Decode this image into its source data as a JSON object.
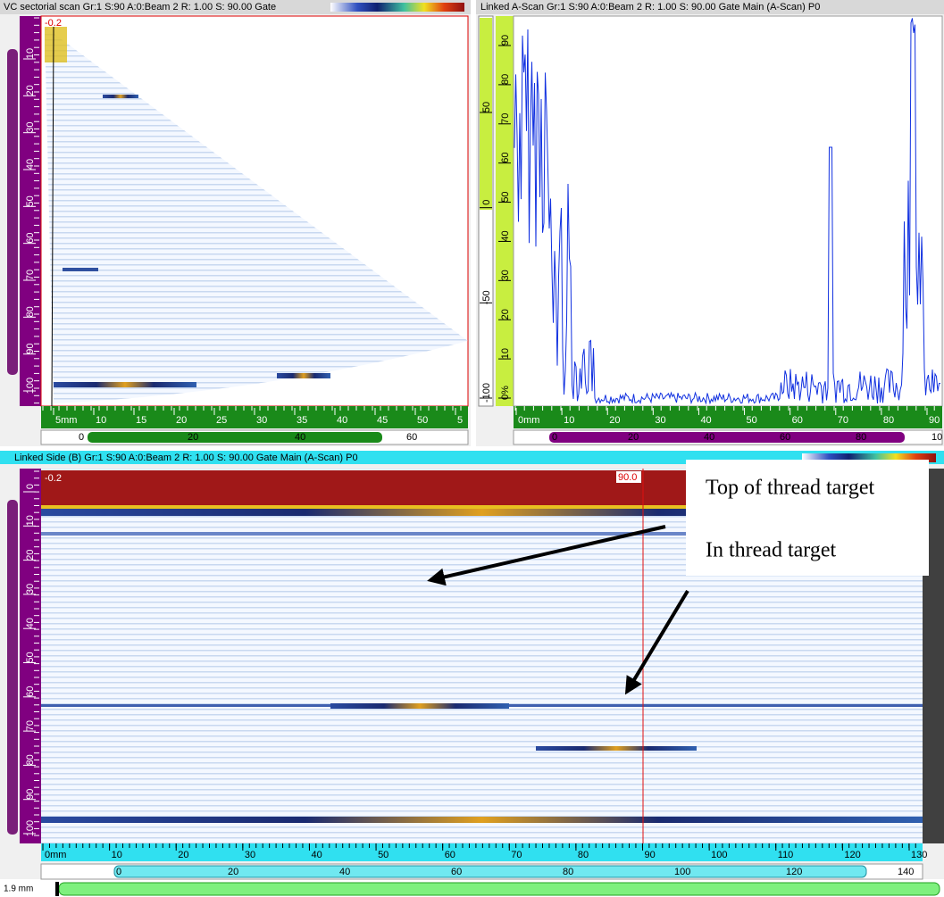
{
  "sectorial": {
    "title": "VC sectorial scan Gr:1 S:90 A:0:Beam 2  R: 1.00 S: 90.00 Gate",
    "cursor": "-0.2",
    "depth_ruler": [
      "10",
      "20",
      "30",
      "40",
      "50",
      "60",
      "70",
      "80",
      "90",
      "100"
    ],
    "index_ruler": [
      "5mm",
      "10",
      "15",
      "20",
      "25",
      "30",
      "35",
      "40",
      "45",
      "50",
      "5"
    ],
    "scroll": [
      "0",
      "20",
      "40",
      "60"
    ]
  },
  "ascan": {
    "title": "Linked A-Scan Gr:1 S:90 A:0:Beam 2  R: 1.00 S: 90.00 Gate Main (A-Scan) P0",
    "amp_ruler": [
      "50",
      "0",
      "-50",
      "-100"
    ],
    "pct_ruler": [
      "0%",
      "10",
      "20",
      "30",
      "40",
      "50",
      "60",
      "70",
      "80",
      "90"
    ],
    "depth_ruler": [
      "0mm",
      "10",
      "20",
      "30",
      "40",
      "50",
      "60",
      "70",
      "80",
      "90"
    ],
    "scroll": [
      "0",
      "20",
      "40",
      "60",
      "80",
      "10"
    ]
  },
  "bscan": {
    "title": "Linked Side (B) Gr:1 S:90 A:0:Beam 2  R: 1.00 S: 90.00 Gate Main (A-Scan) P0",
    "cursor_left": "-0.2",
    "cursor_right": "90.0",
    "depth_ruler": [
      "0",
      "10",
      "20",
      "30",
      "40",
      "50",
      "60",
      "70",
      "80",
      "90",
      "100"
    ],
    "scan_ruler": [
      "0mm",
      "10",
      "20",
      "30",
      "40",
      "50",
      "60",
      "70",
      "80",
      "90",
      "100",
      "110",
      "120",
      "130"
    ],
    "scroll": [
      "0",
      "20",
      "40",
      "60",
      "80",
      "100",
      "120",
      "140"
    ]
  },
  "annotations": [
    "Top of thread target",
    "In thread target"
  ],
  "footer": {
    "resolution": "1.9 mm"
  }
}
